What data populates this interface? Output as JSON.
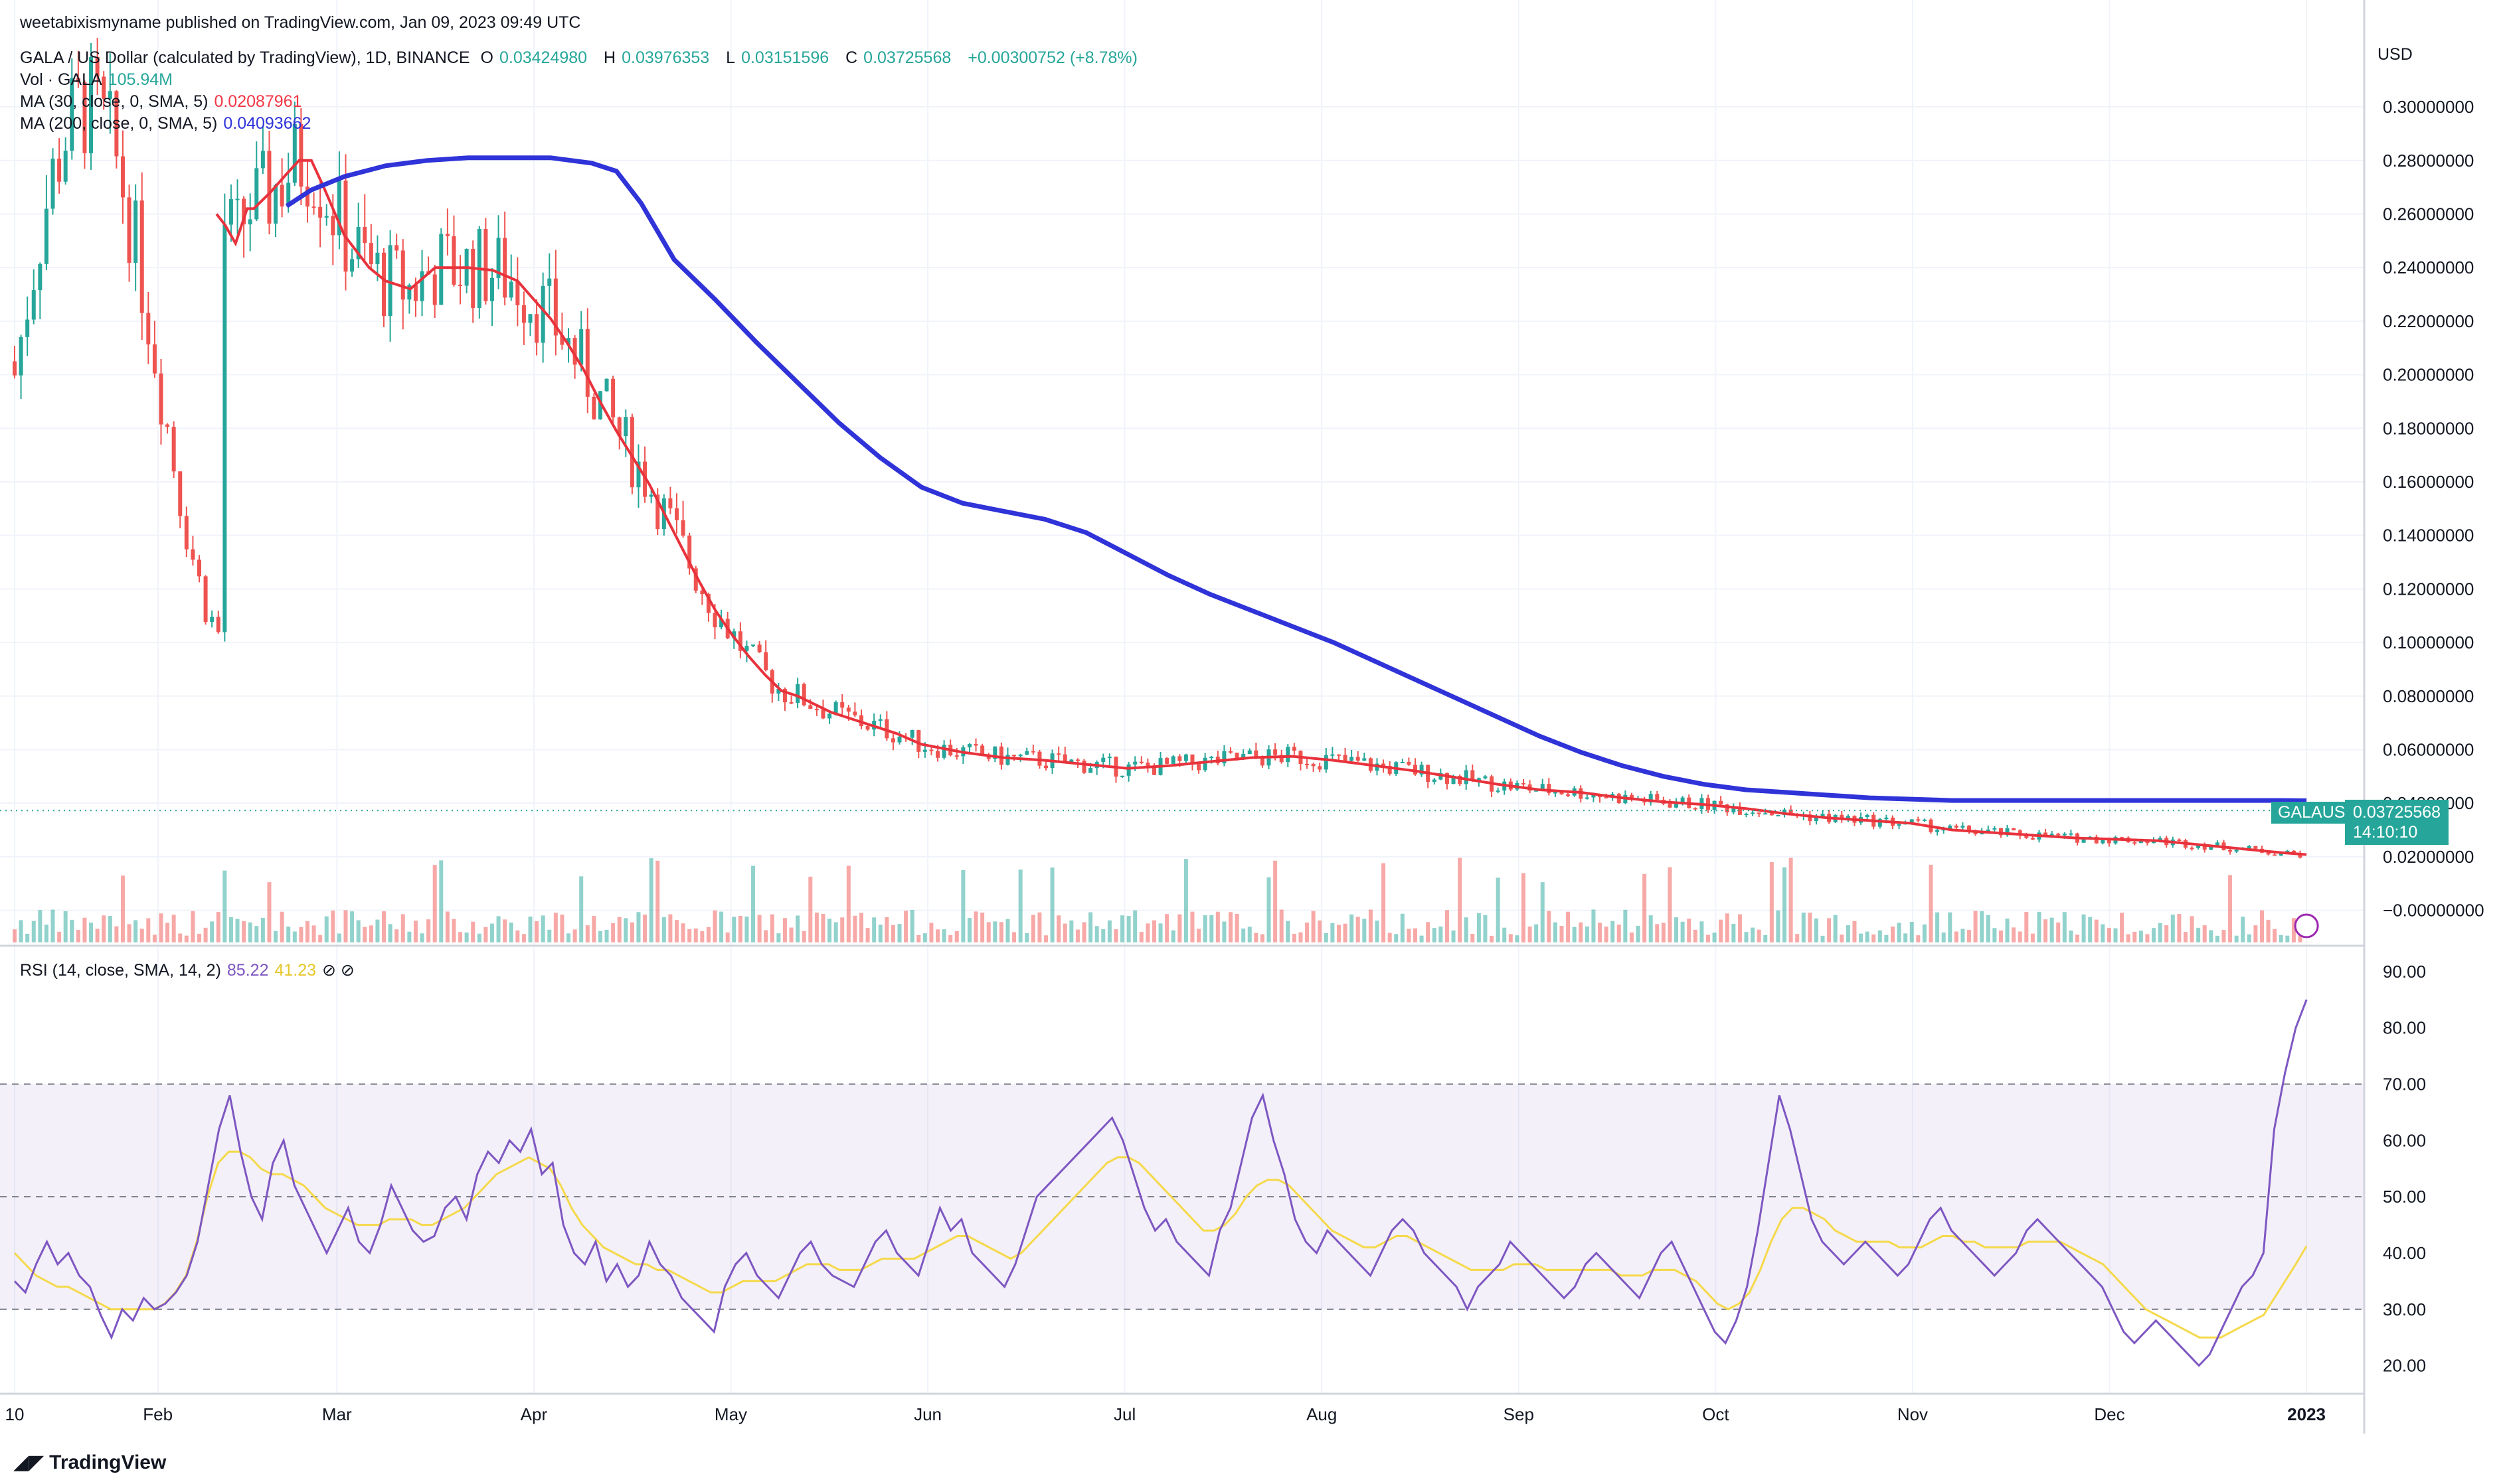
{
  "header": {
    "published": "weetabixismyname published on TradingView.com, Jan 09, 2023 09:49 UTC",
    "symbol_title": "GALA / US Dollar (calculated by TradingView), 1D, BINANCE",
    "ohlc": {
      "o_label": "O",
      "o": "0.03424980",
      "h_label": "H",
      "h": "0.03976353",
      "l_label": "L",
      "l": "0.03151596",
      "c_label": "C",
      "c": "0.03725568",
      "change": "+0.00300752 (+8.78%)"
    },
    "vol_label": "Vol · GALA",
    "vol_value": "105.94M",
    "ma30_label": "MA (30, close, 0, SMA, 5)",
    "ma30_value": "0.02087961",
    "ma200_label": "MA (200, close, 0, SMA, 5)",
    "ma200_value": "0.04093662",
    "rsi_label": "RSI (14, close, SMA, 14, 2)",
    "rsi_value": "85.22",
    "rsi_ma_value": "41.23"
  },
  "currency": "USD",
  "price_badge": {
    "symbol": "GALAUSD",
    "price": "0.03725568",
    "countdown": "14:10:10"
  },
  "brand": "TradingView",
  "colors": {
    "up": "#26a69a",
    "down": "#ef5350",
    "ma30": "#e8323c",
    "ma200": "#2f33d8",
    "rsi": "#7e57c2",
    "rsi_ma": "#f5d94a",
    "rsi_band": "#7e57c2"
  },
  "chart_data": [
    {
      "type": "candlestick",
      "title": "",
      "y_axis_ticks": [
        "0.30000000",
        "0.28000000",
        "0.26000000",
        "0.24000000",
        "0.22000000",
        "0.20000000",
        "0.18000000",
        "0.16000000",
        "0.14000000",
        "0.12000000",
        "0.10000000",
        "0.08000000",
        "0.06000000",
        "0.04000000",
        "0.02000000",
        "−0.00000000"
      ],
      "ylim": [
        -0.012,
        0.33
      ],
      "x_axis_ticks": [
        "10",
        "Feb",
        "Mar",
        "Apr",
        "May",
        "Jun",
        "Jul",
        "Aug",
        "Sep",
        "Oct",
        "Nov",
        "Dec",
        "2023"
      ],
      "grid": true,
      "series": [
        {
          "name": "MA (30, close, 0, SMA, 5)",
          "points": [
            [
              0.245,
              0.26
            ],
            [
              0.255,
              0.256
            ],
            [
              0.268,
              0.249
            ],
            [
              0.282,
              0.262
            ],
            [
              0.29,
              0.262
            ],
            [
              0.31,
              0.268
            ],
            [
              0.33,
              0.275
            ],
            [
              0.345,
              0.28
            ],
            [
              0.36,
              0.28
            ],
            [
              0.375,
              0.27
            ],
            [
              0.4,
              0.252
            ],
            [
              0.43,
              0.24
            ],
            [
              0.45,
              0.235
            ],
            [
              0.48,
              0.232
            ],
            [
              0.51,
              0.24
            ],
            [
              0.55,
              0.24
            ],
            [
              0.58,
              0.239
            ],
            [
              0.61,
              0.235
            ],
            [
              0.63,
              0.228
            ],
            [
              0.65,
              0.221
            ],
            [
              0.67,
              0.212
            ],
            [
              0.69,
              0.202
            ],
            [
              0.71,
              0.19
            ],
            [
              0.73,
              0.179
            ],
            [
              0.75,
              0.169
            ],
            [
              0.77,
              0.159
            ],
            [
              0.79,
              0.147
            ],
            [
              0.81,
              0.135
            ],
            [
              0.83,
              0.123
            ],
            [
              0.85,
              0.112
            ],
            [
              0.87,
              0.103
            ],
            [
              0.89,
              0.095
            ],
            [
              0.91,
              0.088
            ],
            [
              0.93,
              0.082
            ],
            [
              0.95,
              0.08
            ],
            [
              0.97,
              0.077
            ],
            [
              0.99,
              0.074
            ],
            [
              1.03,
              0.07
            ],
            [
              1.07,
              0.066
            ],
            [
              1.1,
              0.062
            ],
            [
              1.15,
              0.059
            ],
            [
              1.2,
              0.057
            ],
            [
              1.25,
              0.056
            ],
            [
              1.3,
              0.0545
            ],
            [
              1.35,
              0.053
            ],
            [
              1.4,
              0.054
            ],
            [
              1.45,
              0.0555
            ],
            [
              1.5,
              0.057
            ],
            [
              1.55,
              0.0575
            ],
            [
              1.6,
              0.056
            ],
            [
              1.65,
              0.054
            ],
            [
              1.7,
              0.052
            ],
            [
              1.75,
              0.0495
            ],
            [
              1.8,
              0.047
            ],
            [
              1.85,
              0.045
            ],
            [
              1.9,
              0.044
            ],
            [
              1.95,
              0.042
            ],
            [
              2.0,
              0.0405
            ],
            [
              2.05,
              0.0395
            ],
            [
              2.1,
              0.038
            ],
            [
              2.15,
              0.036
            ],
            [
              2.2,
              0.0345
            ],
            [
              2.25,
              0.0335
            ],
            [
              2.3,
              0.0325
            ],
            [
              2.35,
              0.03
            ],
            [
              2.4,
              0.029
            ],
            [
              2.45,
              0.028
            ],
            [
              2.5,
              0.027
            ],
            [
              2.55,
              0.0265
            ],
            [
              2.6,
              0.026
            ],
            [
              2.65,
              0.0245
            ],
            [
              2.7,
              0.023
            ],
            [
              2.75,
              0.0215
            ],
            [
              2.78,
              0.0208
            ]
          ]
        },
        {
          "name": "MA (200, close, 0, SMA, 5)",
          "points": [
            [
              0.33,
              0.263
            ],
            [
              0.36,
              0.269
            ],
            [
              0.4,
              0.274
            ],
            [
              0.45,
              0.278
            ],
            [
              0.5,
              0.28
            ],
            [
              0.55,
              0.281
            ],
            [
              0.6,
              0.281
            ],
            [
              0.65,
              0.281
            ],
            [
              0.7,
              0.279
            ],
            [
              0.73,
              0.276
            ],
            [
              0.76,
              0.264
            ],
            [
              0.8,
              0.243
            ],
            [
              0.85,
              0.228
            ],
            [
              0.9,
              0.212
            ],
            [
              0.95,
              0.197
            ],
            [
              1.0,
              0.182
            ],
            [
              1.05,
              0.169
            ],
            [
              1.1,
              0.158
            ],
            [
              1.15,
              0.152
            ],
            [
              1.2,
              0.149
            ],
            [
              1.25,
              0.146
            ],
            [
              1.3,
              0.141
            ],
            [
              1.35,
              0.133
            ],
            [
              1.4,
              0.125
            ],
            [
              1.45,
              0.118
            ],
            [
              1.5,
              0.112
            ],
            [
              1.55,
              0.106
            ],
            [
              1.6,
              0.1
            ],
            [
              1.65,
              0.093
            ],
            [
              1.7,
              0.086
            ],
            [
              1.75,
              0.079
            ],
            [
              1.8,
              0.072
            ],
            [
              1.85,
              0.065
            ],
            [
              1.9,
              0.059
            ],
            [
              1.95,
              0.054
            ],
            [
              2.0,
              0.05
            ],
            [
              2.05,
              0.047
            ],
            [
              2.1,
              0.045
            ],
            [
              2.15,
              0.044
            ],
            [
              2.2,
              0.043
            ],
            [
              2.25,
              0.042
            ],
            [
              2.3,
              0.0415
            ],
            [
              2.35,
              0.041
            ],
            [
              2.4,
              0.041
            ],
            [
              2.45,
              0.041
            ],
            [
              2.5,
              0.041
            ],
            [
              2.55,
              0.041
            ],
            [
              2.6,
              0.041
            ],
            [
              2.65,
              0.041
            ],
            [
              2.7,
              0.041
            ],
            [
              2.75,
              0.041
            ],
            [
              2.78,
              0.0409
            ]
          ]
        }
      ]
    },
    {
      "type": "line",
      "title": "RSI (14, close, SMA, 14, 2)",
      "y_axis_ticks": [
        "90.00",
        "80.00",
        "70.00",
        "60.00",
        "50.00",
        "40.00",
        "30.00",
        "20.00"
      ],
      "ylim": [
        15,
        94
      ],
      "bands": {
        "upper": 70,
        "middle": 50,
        "lower": 30
      },
      "series": [
        {
          "name": "RSI",
          "values": [
            35,
            33,
            38,
            42,
            38,
            40,
            36,
            34,
            29,
            25,
            30,
            28,
            32,
            30,
            31,
            33,
            36,
            42,
            52,
            62,
            68,
            58,
            50,
            46,
            56,
            60,
            52,
            48,
            44,
            40,
            44,
            48,
            42,
            40,
            45,
            52,
            48,
            44,
            42,
            43,
            48,
            50,
            46,
            54,
            58,
            56,
            60,
            58,
            62,
            54,
            56,
            45,
            40,
            38,
            42,
            35,
            38,
            34,
            36,
            42,
            38,
            36,
            32,
            30,
            28,
            26,
            34,
            38,
            40,
            36,
            34,
            32,
            36,
            40,
            42,
            38,
            36,
            35,
            34,
            38,
            42,
            44,
            40,
            38,
            36,
            42,
            48,
            44,
            46,
            40,
            38,
            36,
            34,
            38,
            44,
            50,
            52,
            54,
            56,
            58,
            60,
            62,
            64,
            60,
            54,
            48,
            44,
            46,
            42,
            40,
            38,
            36,
            44,
            48,
            56,
            64,
            68,
            60,
            54,
            46,
            42,
            40,
            44,
            42,
            40,
            38,
            36,
            40,
            44,
            46,
            44,
            40,
            38,
            36,
            34,
            30,
            34,
            36,
            38,
            42,
            40,
            38,
            36,
            34,
            32,
            34,
            38,
            40,
            38,
            36,
            34,
            32,
            36,
            40,
            42,
            38,
            34,
            30,
            26,
            24,
            28,
            34,
            44,
            56,
            68,
            62,
            54,
            46,
            42,
            40,
            38,
            40,
            42,
            40,
            38,
            36,
            38,
            42,
            46,
            48,
            44,
            42,
            40,
            38,
            36,
            38,
            40,
            44,
            46,
            44,
            42,
            40,
            38,
            36,
            34,
            30,
            26,
            24,
            26,
            28,
            26,
            24,
            22,
            20,
            22,
            26,
            30,
            34,
            36,
            40,
            62,
            72,
            80,
            85
          ]
        },
        {
          "name": "RSI MA",
          "values": [
            40,
            38,
            36,
            35,
            34,
            34,
            33,
            32,
            31,
            30,
            30,
            30,
            30,
            30,
            31,
            33,
            36,
            42,
            50,
            56,
            58,
            58,
            57,
            55,
            54,
            54,
            53,
            52,
            50,
            48,
            47,
            46,
            45,
            45,
            45,
            46,
            46,
            46,
            45,
            45,
            46,
            47,
            48,
            50,
            52,
            54,
            55,
            56,
            57,
            56,
            55,
            52,
            48,
            45,
            43,
            41,
            40,
            39,
            38,
            38,
            37,
            37,
            36,
            35,
            34,
            33,
            33,
            34,
            35,
            35,
            35,
            35,
            36,
            37,
            38,
            38,
            38,
            37,
            37,
            37,
            38,
            39,
            39,
            39,
            39,
            40,
            41,
            42,
            43,
            43,
            42,
            41,
            40,
            39,
            40,
            42,
            44,
            46,
            48,
            50,
            52,
            54,
            56,
            57,
            57,
            56,
            54,
            52,
            50,
            48,
            46,
            44,
            44,
            45,
            47,
            50,
            52,
            53,
            53,
            52,
            50,
            48,
            46,
            44,
            43,
            42,
            41,
            41,
            42,
            43,
            43,
            42,
            41,
            40,
            39,
            38,
            37,
            37,
            37,
            37,
            38,
            38,
            38,
            37,
            37,
            37,
            37,
            37,
            37,
            37,
            36,
            36,
            36,
            37,
            37,
            37,
            36,
            35,
            33,
            31,
            30,
            31,
            33,
            37,
            42,
            46,
            48,
            48,
            47,
            46,
            44,
            43,
            42,
            42,
            42,
            42,
            41,
            41,
            41,
            42,
            43,
            43,
            42,
            42,
            41,
            41,
            41,
            41,
            42,
            42,
            42,
            42,
            41,
            40,
            39,
            38,
            36,
            34,
            32,
            30,
            29,
            28,
            27,
            26,
            25,
            25,
            25,
            26,
            27,
            28,
            29,
            32,
            35,
            38,
            41.23
          ]
        }
      ]
    }
  ]
}
